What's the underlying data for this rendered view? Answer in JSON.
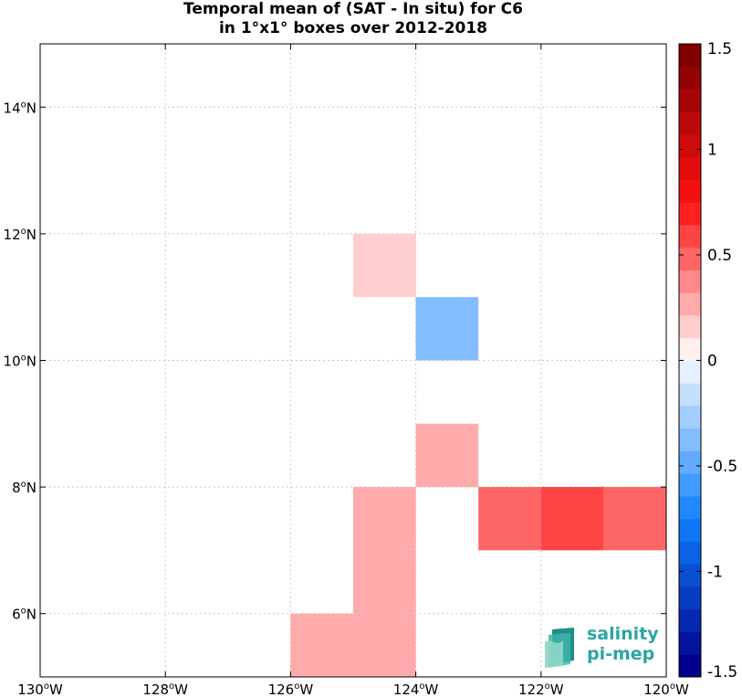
{
  "chart_data": {
    "type": "heatmap",
    "title_line1": "Temporal mean of (SAT - In situ) for C6",
    "title_line2": "in 1°x1° boxes over 2012-2018",
    "xlim": [
      -130,
      -120
    ],
    "ylim": [
      5,
      15
    ],
    "x_ticks": [
      {
        "value": -130,
        "label": "130",
        "suffix": "W"
      },
      {
        "value": -128,
        "label": "128",
        "suffix": "W"
      },
      {
        "value": -126,
        "label": "126",
        "suffix": "W"
      },
      {
        "value": -124,
        "label": "124",
        "suffix": "W"
      },
      {
        "value": -122,
        "label": "122",
        "suffix": "W"
      },
      {
        "value": -120,
        "label": "120",
        "suffix": "W"
      }
    ],
    "y_ticks": [
      {
        "value": 6,
        "label": "6",
        "suffix": "N"
      },
      {
        "value": 8,
        "label": "8",
        "suffix": "N"
      },
      {
        "value": 10,
        "label": "10",
        "suffix": "N"
      },
      {
        "value": 12,
        "label": "12",
        "suffix": "N"
      },
      {
        "value": 14,
        "label": "14",
        "suffix": "N"
      }
    ],
    "grid": true,
    "cells": [
      {
        "lon": -125,
        "lat": 11,
        "value": 0.15
      },
      {
        "lon": -124,
        "lat": 10,
        "value": -0.4
      },
      {
        "lon": -124,
        "lat": 8,
        "value": 0.3
      },
      {
        "lon": -125,
        "lat": 7,
        "value": 0.3
      },
      {
        "lon": -125,
        "lat": 6,
        "value": 0.3
      },
      {
        "lon": -126,
        "lat": 5,
        "value": 0.3
      },
      {
        "lon": -125,
        "lat": 5,
        "value": 0.3
      },
      {
        "lon": -123,
        "lat": 7,
        "value": 0.45
      },
      {
        "lon": -122,
        "lat": 7,
        "value": 0.55
      },
      {
        "lon": -121,
        "lat": 7,
        "value": 0.45
      }
    ],
    "colorbar": {
      "min": -1.5,
      "max": 1.5,
      "ticks": [
        {
          "value": 1.5,
          "label": "1.5"
        },
        {
          "value": 1,
          "label": "1"
        },
        {
          "value": 0.5,
          "label": "0.5"
        },
        {
          "value": 0,
          "label": "0"
        },
        {
          "value": -0.5,
          "label": "-0.5"
        },
        {
          "value": -1,
          "label": "-1"
        },
        {
          "value": -1.5,
          "label": "-1.5"
        }
      ]
    }
  },
  "logo": {
    "line1": "salinity",
    "line2": "pi-mep"
  }
}
